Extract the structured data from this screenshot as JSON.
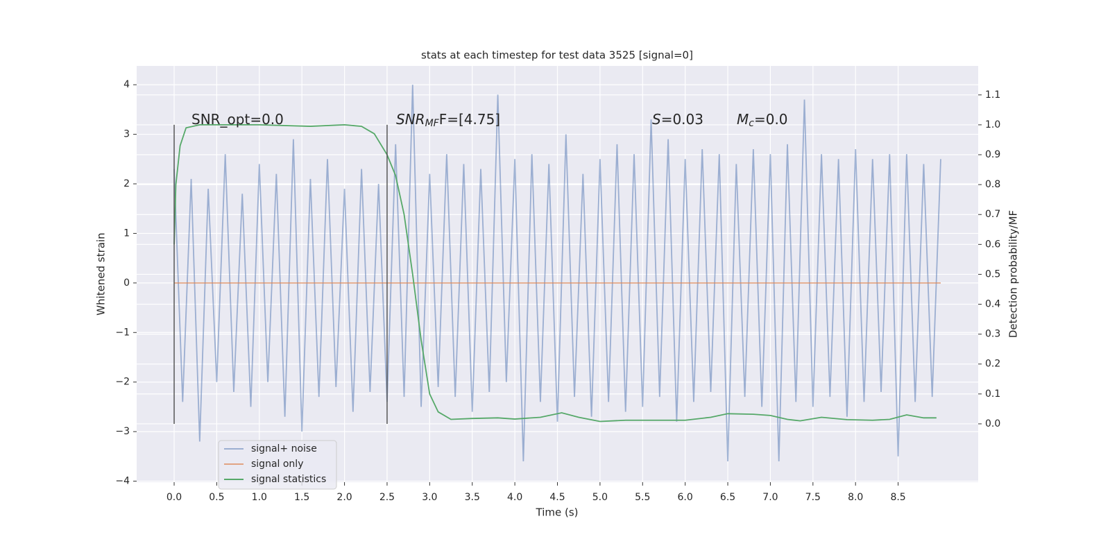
{
  "chart_data": {
    "type": "line",
    "title": "stats at each timestep for test data 3525 [signal=0]",
    "xlabel": "Time (s)",
    "ylabel": "Whitened strain",
    "y2label": "Detection probability/MF",
    "xlim": [
      -0.44,
      9.44
    ],
    "ylim": [
      -4.02,
      4.38
    ],
    "y2lim": [
      -0.195,
      1.197
    ],
    "xticks": [
      {
        "value": 0,
        "label": "0.0"
      },
      {
        "value": 0.5,
        "label": "0.5"
      },
      {
        "value": 1,
        "label": "1.0"
      },
      {
        "value": 1.5,
        "label": "1.5"
      },
      {
        "value": 2,
        "label": "2.0"
      },
      {
        "value": 2.5,
        "label": "2.5"
      },
      {
        "value": 3,
        "label": "3.0"
      },
      {
        "value": 3.5,
        "label": "3.5"
      },
      {
        "value": 4,
        "label": "4.0"
      },
      {
        "value": 4.5,
        "label": "4.5"
      },
      {
        "value": 5,
        "label": "5.0"
      },
      {
        "value": 5.5,
        "label": "5.5"
      },
      {
        "value": 6,
        "label": "6.0"
      },
      {
        "value": 6.5,
        "label": "6.5"
      },
      {
        "value": 7,
        "label": "7.0"
      },
      {
        "value": 7.5,
        "label": "7.5"
      },
      {
        "value": 8,
        "label": "8.0"
      },
      {
        "value": 8.5,
        "label": "8.5"
      }
    ],
    "yticks": [
      {
        "value": -4,
        "label": "−4"
      },
      {
        "value": -3,
        "label": "−3"
      },
      {
        "value": -2,
        "label": "−2"
      },
      {
        "value": -1,
        "label": "−1"
      },
      0,
      1,
      2,
      3,
      4
    ],
    "y2ticks": [
      {
        "value": 0,
        "label": "0.0"
      },
      {
        "value": 0.1,
        "label": "0.1"
      },
      {
        "value": 0.2,
        "label": "0.2"
      },
      {
        "value": 0.3,
        "label": "0.3"
      },
      {
        "value": 0.4,
        "label": "0.4"
      },
      {
        "value": 0.5,
        "label": "0.5"
      },
      {
        "value": 0.6,
        "label": "0.6"
      },
      {
        "value": 0.7,
        "label": "0.7"
      },
      {
        "value": 0.8,
        "label": "0.8"
      },
      {
        "value": 0.9,
        "label": "0.9"
      },
      {
        "value": 1,
        "label": "1.0"
      },
      {
        "value": 1.1,
        "label": "1.1"
      }
    ],
    "grid": true,
    "legend": "lower left",
    "series": [
      {
        "name": "signal+ noise",
        "color": "#4c72b0",
        "alpha": 0.5,
        "x": [
          0,
          0.1,
          0.2,
          0.3,
          0.4,
          0.5,
          0.6,
          0.7,
          0.8,
          0.9,
          1,
          1.1,
          1.2,
          1.3,
          1.4,
          1.5,
          1.6,
          1.7,
          1.8,
          1.9,
          2,
          2.1,
          2.2,
          2.3,
          2.4,
          2.5,
          2.6,
          2.7,
          2.8,
          2.9,
          3,
          3.1,
          3.2,
          3.3,
          3.4,
          3.5,
          3.6,
          3.7,
          3.8,
          3.9,
          4,
          4.1,
          4.2,
          4.3,
          4.4,
          4.5,
          4.6,
          4.7,
          4.8,
          4.9,
          5,
          5.1,
          5.2,
          5.3,
          5.4,
          5.5,
          5.6,
          5.7,
          5.8,
          5.9,
          6,
          6.1,
          6.2,
          6.3,
          6.4,
          6.5,
          6.6,
          6.7,
          6.8,
          6.9,
          7,
          7.1,
          7.2,
          7.3,
          7.4,
          7.5,
          7.6,
          7.7,
          7.8,
          7.9,
          8,
          8.1,
          8.2,
          8.3,
          8.4,
          8.5,
          8.6,
          8.7,
          8.8,
          8.9,
          9
        ],
        "values": [
          2.3,
          -2.4,
          2.1,
          -3.2,
          1.9,
          -2.0,
          2.6,
          -2.2,
          1.8,
          -2.5,
          2.4,
          -2.0,
          2.2,
          -2.7,
          2.9,
          -3.0,
          2.1,
          -2.3,
          2.5,
          -2.1,
          1.9,
          -2.6,
          2.3,
          -2.2,
          2.0,
          -2.4,
          2.8,
          -2.3,
          4.0,
          -2.5,
          2.2,
          -2.1,
          2.6,
          -2.3,
          2.4,
          -2.6,
          2.3,
          -2.2,
          3.8,
          -2.0,
          2.5,
          -3.6,
          2.6,
          -2.4,
          2.4,
          -2.8,
          3.0,
          -2.3,
          2.2,
          -2.7,
          2.5,
          -2.4,
          2.8,
          -2.6,
          2.6,
          -2.5,
          3.3,
          -2.3,
          2.9,
          -2.8,
          2.5,
          -2.4,
          2.7,
          -2.2,
          2.6,
          -3.6,
          2.4,
          -2.3,
          2.7,
          -2.5,
          2.6,
          -3.6,
          2.8,
          -2.4,
          3.7,
          -2.5,
          2.6,
          -2.3,
          2.5,
          -2.7,
          2.7,
          -2.4,
          2.5,
          -2.2,
          2.6,
          -3.5,
          2.6,
          -2.4,
          2.4,
          -2.3,
          2.5
        ]
      },
      {
        "name": "signal only",
        "color": "#dd8452",
        "alpha": 0.7,
        "x": [
          0,
          9
        ],
        "values": [
          0,
          0
        ]
      },
      {
        "name": "signal statistics",
        "color": "#55a868",
        "alpha": 1,
        "axis": "y2",
        "x": [
          0,
          0.02,
          0.07,
          0.14,
          0.3,
          1.0,
          1.6,
          2.0,
          2.2,
          2.35,
          2.5,
          2.6,
          2.7,
          2.8,
          2.9,
          3.0,
          3.1,
          3.25,
          3.5,
          3.8,
          4.0,
          4.3,
          4.55,
          4.75,
          5.0,
          5.3,
          5.6,
          6.0,
          6.3,
          6.5,
          6.8,
          7.0,
          7.2,
          7.35,
          7.6,
          7.9,
          8.2,
          8.4,
          8.6,
          8.8,
          8.95
        ],
        "values": [
          0.6,
          0.8,
          0.93,
          0.99,
          1.0,
          1.0,
          0.995,
          1.0,
          0.995,
          0.97,
          0.9,
          0.83,
          0.7,
          0.5,
          0.28,
          0.1,
          0.04,
          0.015,
          0.018,
          0.02,
          0.016,
          0.022,
          0.037,
          0.022,
          0.008,
          0.012,
          0.012,
          0.012,
          0.022,
          0.034,
          0.032,
          0.028,
          0.015,
          0.01,
          0.022,
          0.014,
          0.012,
          0.015,
          0.03,
          0.02,
          0.02
        ]
      }
    ],
    "vlines": [
      0,
      2.5
    ],
    "vline_range": [
      0,
      1
    ],
    "annotations": [
      {
        "text": "SNR_opt=0.0",
        "italic": false
      },
      {
        "text": "SNR",
        "sub": "MF",
        "rest": "F=[4.75]",
        "italic": true
      },
      {
        "text": "S",
        "rest": "=0.03",
        "italic": true
      },
      {
        "text": "M",
        "sub": "c",
        "rest": "=0.0",
        "italic": true
      }
    ]
  }
}
